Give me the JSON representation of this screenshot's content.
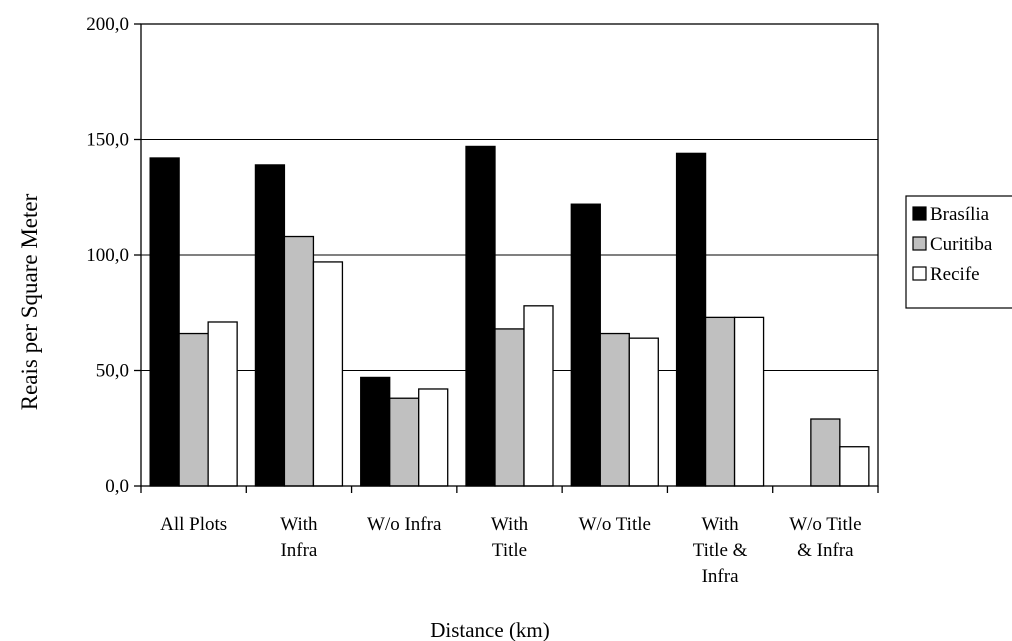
{
  "chart_data": {
    "type": "bar",
    "title": "",
    "xlabel": "Distance (km)",
    "ylabel": "Reais per Square Meter",
    "ylim": [
      0,
      200
    ],
    "yticks": [
      0,
      50,
      100,
      150,
      200
    ],
    "yticks_labels": [
      "0,0",
      "50,0",
      "100,0",
      "150,0",
      "200,0"
    ],
    "grid": "horizontal",
    "legend_position": "right",
    "categories": [
      [
        "All Plots"
      ],
      [
        "With",
        "Infra"
      ],
      [
        "W/o Infra"
      ],
      [
        "With",
        "Title"
      ],
      [
        "W/o Title"
      ],
      [
        "With",
        "Title &",
        "Infra"
      ],
      [
        "W/o Title",
        "& Infra"
      ]
    ],
    "series": [
      {
        "name": "Brasília",
        "color": "#000000",
        "values": [
          142,
          139,
          47,
          147,
          122,
          144,
          0
        ]
      },
      {
        "name": "Curitiba",
        "color": "#c0c0c0",
        "values": [
          66,
          108,
          38,
          68,
          66,
          73,
          29
        ]
      },
      {
        "name": "Recife",
        "color": "#ffffff",
        "values": [
          71,
          97,
          42,
          78,
          64,
          73,
          17
        ]
      }
    ]
  }
}
